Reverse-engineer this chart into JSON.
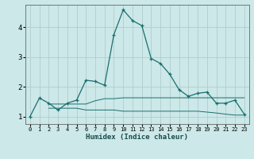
{
  "xlabel": "Humidex (Indice chaleur)",
  "background_color": "#cce8e8",
  "grid_color": "#b0cccc",
  "line_color": "#1a6e6e",
  "xlim": [
    -0.5,
    23.5
  ],
  "ylim": [
    0.75,
    4.75
  ],
  "xticks": [
    0,
    1,
    2,
    3,
    4,
    5,
    6,
    7,
    8,
    9,
    10,
    11,
    12,
    13,
    14,
    15,
    16,
    17,
    18,
    19,
    20,
    21,
    22,
    23
  ],
  "yticks": [
    1,
    2,
    3,
    4
  ],
  "main_line": {
    "x": [
      0,
      1,
      2,
      3,
      4,
      5,
      6,
      7,
      8,
      9,
      10,
      11,
      12,
      13,
      14,
      15,
      16,
      17,
      18,
      19,
      20,
      21,
      22,
      23
    ],
    "y": [
      1.0,
      1.62,
      1.45,
      1.22,
      1.45,
      1.55,
      2.22,
      2.18,
      2.05,
      3.75,
      4.58,
      4.22,
      4.05,
      2.95,
      2.78,
      2.42,
      1.9,
      1.68,
      1.78,
      1.82,
      1.45,
      1.45,
      1.55,
      1.08
    ]
  },
  "upper_band": {
    "x": [
      2,
      3,
      4,
      5,
      6,
      7,
      8,
      9,
      10,
      11,
      12,
      13,
      14,
      15,
      16,
      17,
      18,
      19,
      20,
      21,
      22,
      23
    ],
    "y": [
      1.42,
      1.42,
      1.42,
      1.42,
      1.42,
      1.53,
      1.6,
      1.6,
      1.63,
      1.63,
      1.63,
      1.63,
      1.63,
      1.63,
      1.63,
      1.63,
      1.63,
      1.63,
      1.63,
      1.63,
      1.63,
      1.63
    ]
  },
  "lower_band": {
    "x": [
      2,
      3,
      4,
      5,
      6,
      7,
      8,
      9,
      10,
      11,
      12,
      13,
      14,
      15,
      16,
      17,
      18,
      19,
      20,
      21,
      22,
      23
    ],
    "y": [
      1.28,
      1.28,
      1.28,
      1.28,
      1.22,
      1.22,
      1.22,
      1.22,
      1.18,
      1.18,
      1.18,
      1.18,
      1.18,
      1.18,
      1.18,
      1.18,
      1.18,
      1.15,
      1.12,
      1.08,
      1.05,
      1.05
    ]
  }
}
